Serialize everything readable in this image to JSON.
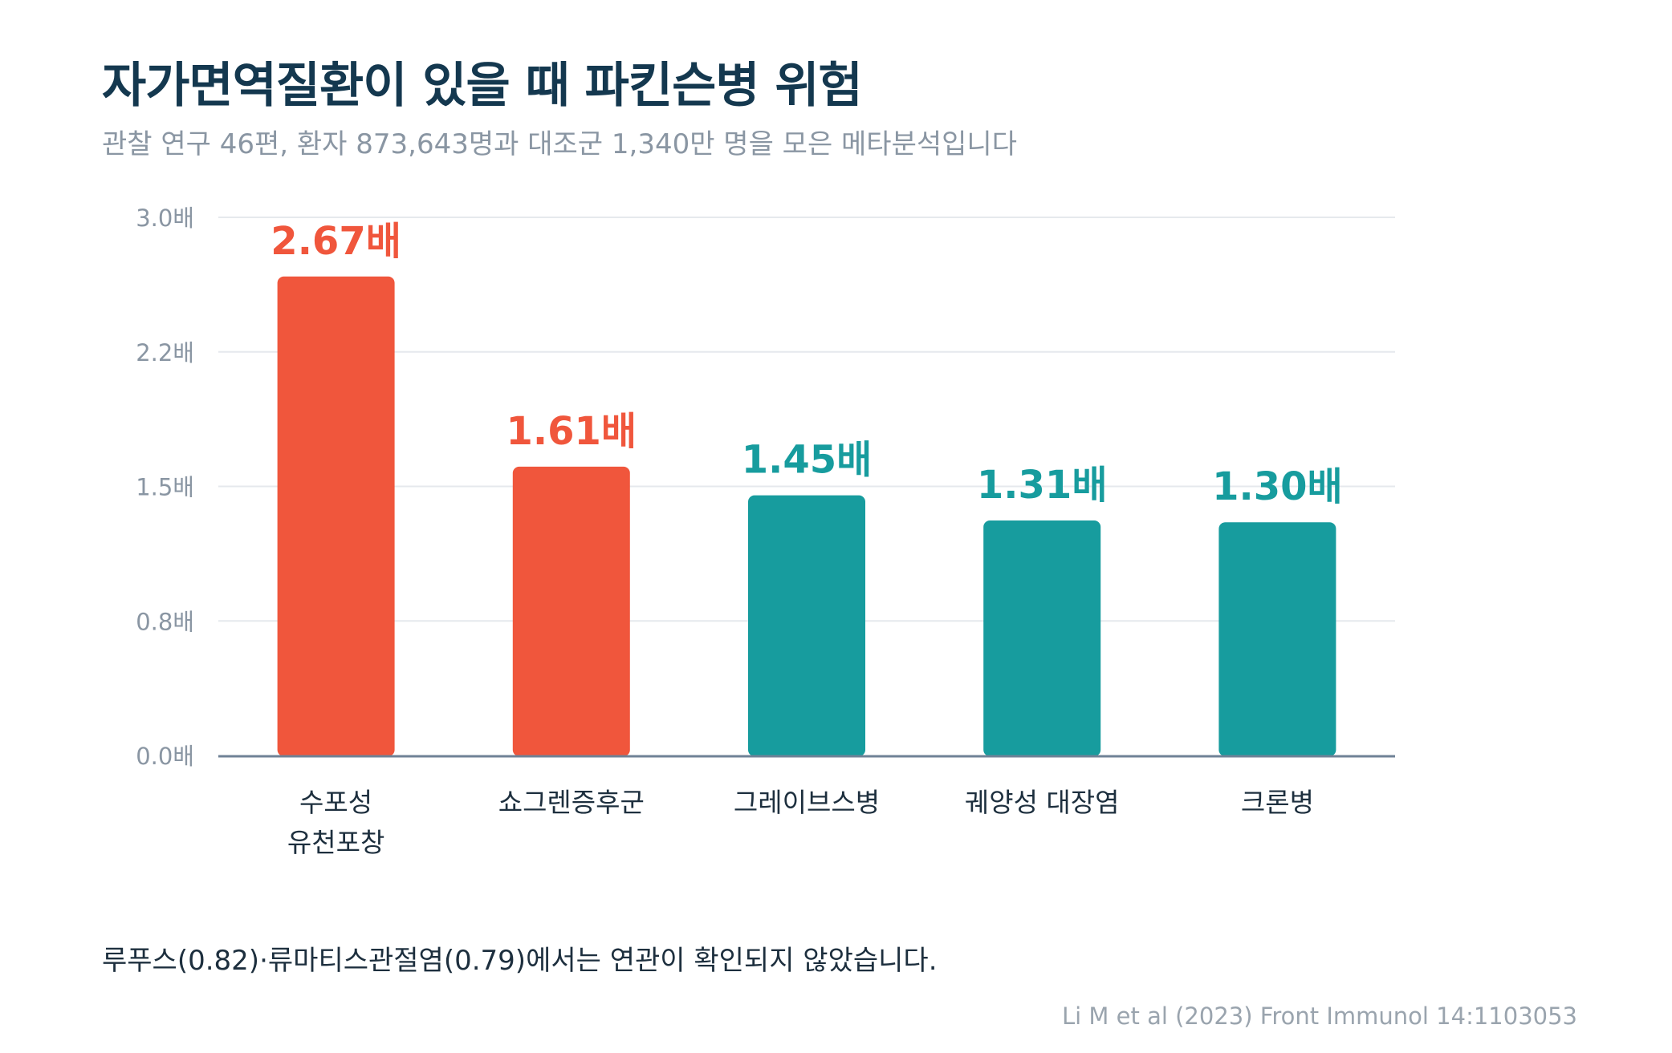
{
  "title": "자가면역질환이 있을 때 파킨슨병 위험",
  "subtitle": "관찰 연구 46편, 환자 873,643명과 대조군 1,340만 명을 모은 메타분석입니다",
  "chart_data": {
    "type": "bar",
    "categories": [
      [
        "수포성",
        "유천포창"
      ],
      [
        "쇼그렌증후군"
      ],
      [
        "그레이브스병"
      ],
      [
        "궤양성 대장염"
      ],
      [
        "크론병"
      ]
    ],
    "values": [
      2.67,
      1.61,
      1.45,
      1.31,
      1.3
    ],
    "value_labels": [
      "2.67배",
      "1.61배",
      "1.45배",
      "1.31배",
      "1.30배"
    ],
    "y_ticks": [
      {
        "value": 0.0,
        "label": "0.0배"
      },
      {
        "value": 0.75,
        "label": "0.8배"
      },
      {
        "value": 1.5,
        "label": "1.5배"
      },
      {
        "value": 2.25,
        "label": "2.2배"
      },
      {
        "value": 3.0,
        "label": "3.0배"
      }
    ],
    "ylim": [
      0,
      3.0
    ],
    "grid": true,
    "colors": {
      "highlight": "#f0563c",
      "normal": "#179c9e",
      "grid": "#e6e9ed",
      "axis": "#6f8296",
      "tick_text": "#8a96a3",
      "category_text": "#1d2f3e"
    },
    "highlight_count": 2
  },
  "footnote": "루푸스(0.82)·류마티스관절염(0.79)에서는 연관이 확인되지 않았습니다.",
  "source": "Li M et al (2023) Front Immunol 14:1103053"
}
